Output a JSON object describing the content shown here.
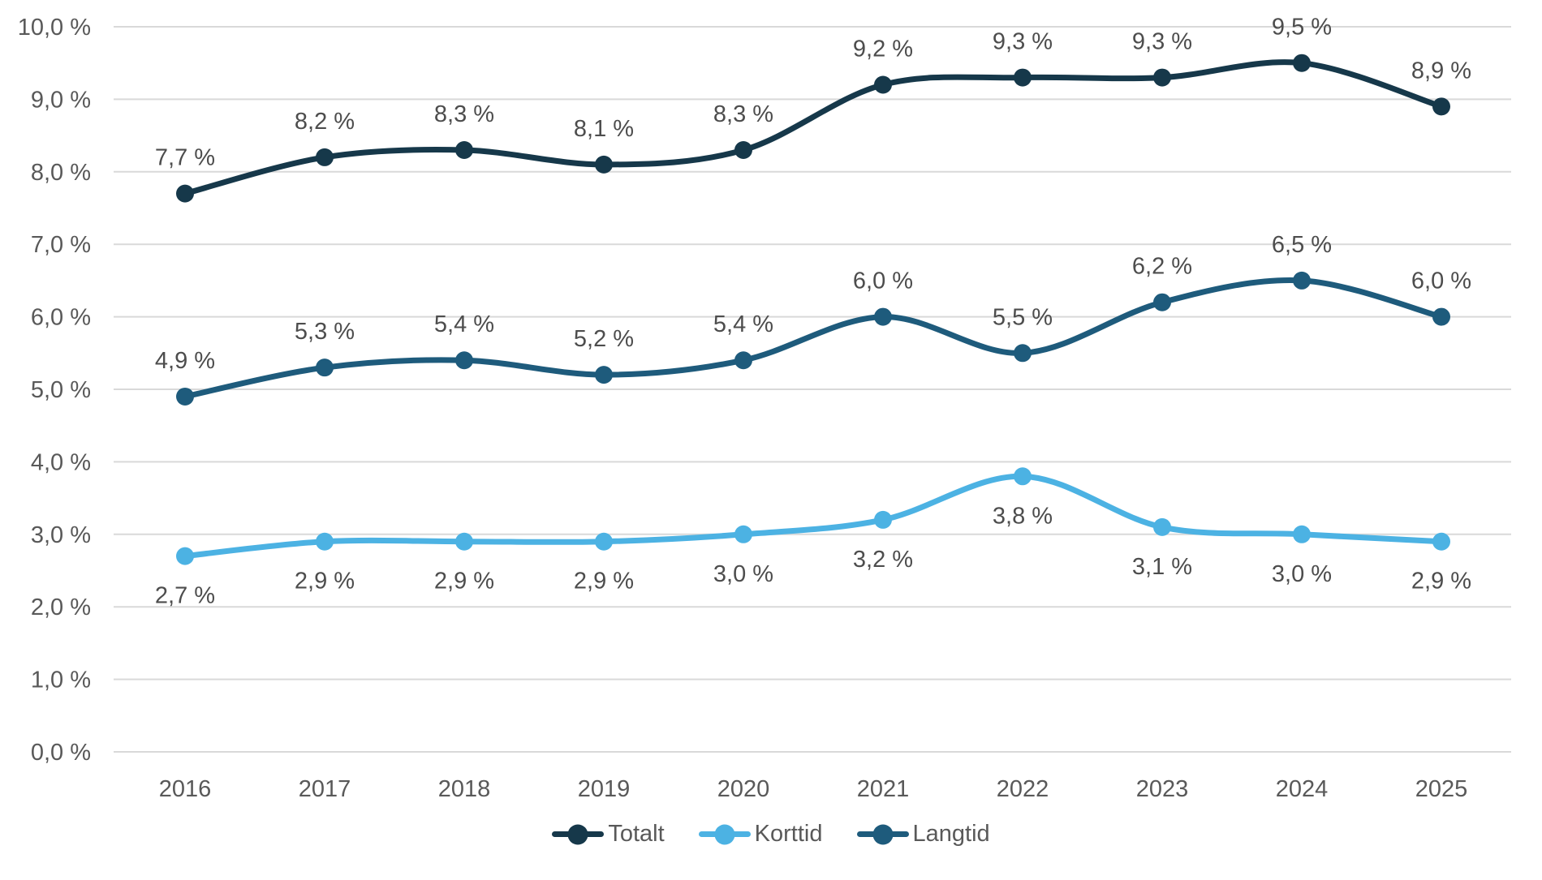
{
  "chart_data": {
    "type": "line",
    "categories": [
      "2016",
      "2017",
      "2018",
      "2019",
      "2020",
      "2021",
      "2022",
      "2023",
      "2024",
      "2025"
    ],
    "series": [
      {
        "name": "Totalt",
        "color": "#16384a",
        "values": [
          7.7,
          8.2,
          8.3,
          8.1,
          8.3,
          9.2,
          9.3,
          9.3,
          9.5,
          8.9
        ],
        "labels": [
          "7,7 %",
          "8,2 %",
          "8,3 %",
          "8,1 %",
          "8,3 %",
          "9,2 %",
          "9,3 %",
          "9,3 %",
          "9,5 %",
          "8,9 %"
        ],
        "label_position": "above"
      },
      {
        "name": "Korttid",
        "color": "#4cb2e3",
        "values": [
          2.7,
          2.9,
          2.9,
          2.9,
          3.0,
          3.2,
          3.8,
          3.1,
          3.0,
          2.9
        ],
        "labels": [
          "2,7 %",
          "2,9 %",
          "2,9 %",
          "2,9 %",
          "3,0 %",
          "3,2 %",
          "3,8 %",
          "3,1 %",
          "3,0 %",
          "2,9 %"
        ],
        "label_position": "below"
      },
      {
        "name": "Langtid",
        "color": "#1e5b7c",
        "values": [
          4.9,
          5.3,
          5.4,
          5.2,
          5.4,
          6.0,
          5.5,
          6.2,
          6.5,
          6.0
        ],
        "labels": [
          "4,9 %",
          "5,3 %",
          "5,4 %",
          "5,2 %",
          "5,4 %",
          "6,0 %",
          "5,5 %",
          "6,2 %",
          "6,5 %",
          "6,0 %"
        ],
        "label_position": "above"
      }
    ],
    "title": "",
    "xlabel": "",
    "ylabel": "",
    "ylim": [
      0,
      10
    ],
    "ytick_step": 1,
    "ytick_labels": [
      "0,0 %",
      "1,0 %",
      "2,0 %",
      "3,0 %",
      "4,0 %",
      "5,0 %",
      "6,0 %",
      "7,0 %",
      "8,0 %",
      "9,0 %",
      "10,0 %"
    ],
    "grid": "horizontal",
    "smooth_lines": true,
    "legend_position": "bottom"
  },
  "legend": {
    "items": [
      {
        "label": "Totalt"
      },
      {
        "label": "Korttid"
      },
      {
        "label": "Langtid"
      }
    ]
  },
  "colors": {
    "background": "#ffffff",
    "gridline": "#d9d9d9",
    "axis_text": "#595959",
    "data_label_text": "#4d4d4d",
    "series_totalt": "#16384a",
    "series_korttid": "#4cb2e3",
    "series_langtid": "#1e5b7c"
  }
}
